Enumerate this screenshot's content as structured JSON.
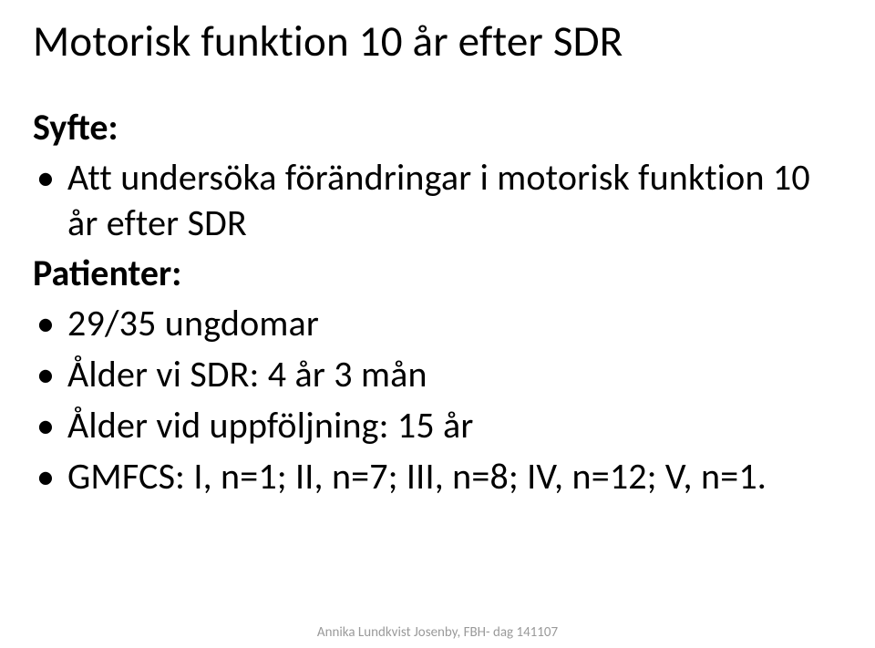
{
  "title": "Motorisk funktion 10 år efter SDR",
  "section1": {
    "label": "Syfte:",
    "bullets": [
      "Att undersöka förändringar i motorisk funktion 10 år efter SDR"
    ]
  },
  "section2": {
    "label": "Patienter:",
    "bullets": [
      "29/35 ungdomar",
      "Ålder vi SDR: 4 år 3 mån",
      "Ålder vid uppföljning: 15 år",
      "GMFCS: I, n=1; II, n=7; III, n=8; IV, n=12; V, n=1."
    ]
  },
  "footer": "Annika Lundkvist Josenby, FBH- dag 141107",
  "bullet_glyph": "•",
  "colors": {
    "background": "#ffffff",
    "text": "#000000",
    "footer": "#9a9a9a"
  },
  "typography": {
    "title_fontsize": 47,
    "body_fontsize": 40,
    "footer_fontsize": 15,
    "title_weight": 400,
    "label_weight": 700
  }
}
